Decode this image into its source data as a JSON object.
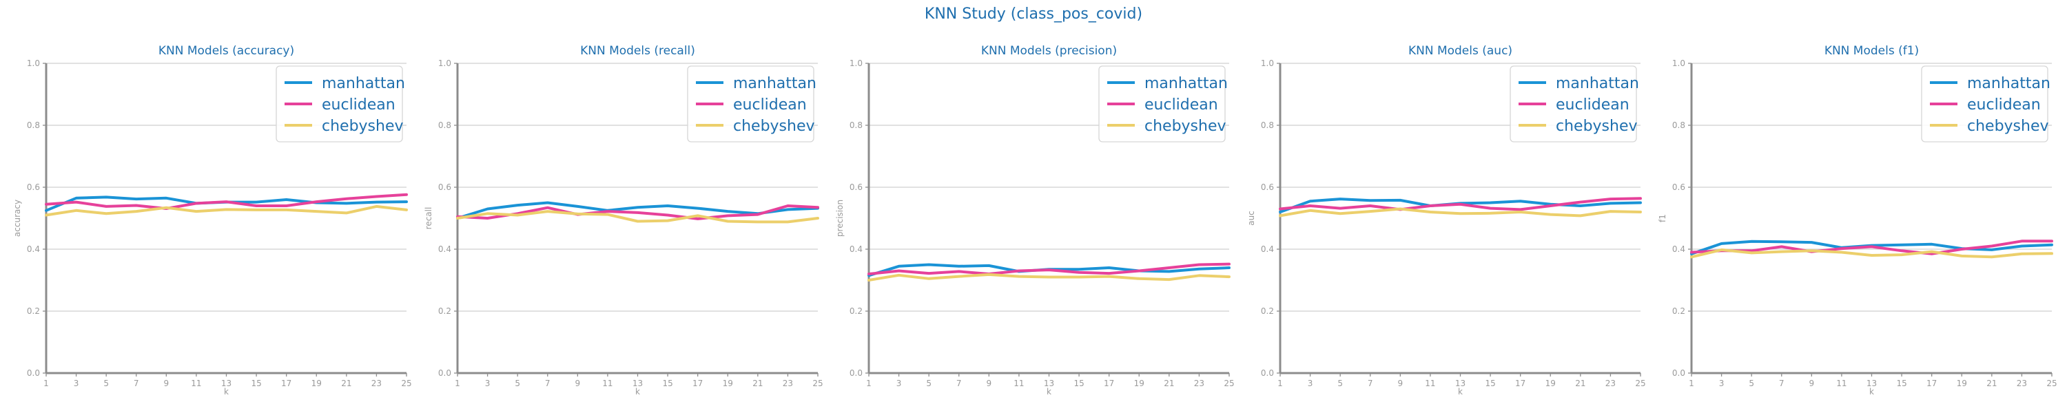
{
  "suptitle": "KNN Study (class_pos_covid)",
  "colors": {
    "manhattan": "#1a93d6",
    "euclidean": "#e6419a",
    "chebyshev": "#eccf6b"
  },
  "chart_data": [
    {
      "type": "line",
      "title": "KNN Models (accuracy)",
      "xlabel": "k",
      "ylabel": "accuracy",
      "ylim": [
        0.0,
        1.0
      ],
      "yticks": [
        "0.0",
        "0.2",
        "0.4",
        "0.6",
        "0.8",
        "1.0"
      ],
      "x": [
        1,
        3,
        5,
        7,
        9,
        11,
        13,
        15,
        17,
        19,
        21,
        23,
        25
      ],
      "grid": "horizontal",
      "legend": "top-right",
      "series": [
        {
          "name": "manhattan",
          "values": [
            0.525,
            0.565,
            0.568,
            0.562,
            0.565,
            0.548,
            0.552,
            0.552,
            0.56,
            0.55,
            0.548,
            0.552,
            0.553
          ]
        },
        {
          "name": "euclidean",
          "values": [
            0.545,
            0.552,
            0.538,
            0.541,
            0.531,
            0.548,
            0.553,
            0.54,
            0.54,
            0.553,
            0.563,
            0.57,
            0.576
          ]
        },
        {
          "name": "chebyshev",
          "values": [
            0.51,
            0.525,
            0.515,
            0.522,
            0.534,
            0.522,
            0.528,
            0.527,
            0.527,
            0.522,
            0.517,
            0.538,
            0.527
          ]
        }
      ]
    },
    {
      "type": "line",
      "title": "KNN Models (recall)",
      "xlabel": "k",
      "ylabel": "recall",
      "ylim": [
        0.0,
        1.0
      ],
      "yticks": [
        "0.0",
        "0.2",
        "0.4",
        "0.6",
        "0.8",
        "1.0"
      ],
      "x": [
        1,
        3,
        5,
        7,
        9,
        11,
        13,
        15,
        17,
        19,
        21,
        23,
        25
      ],
      "grid": "horizontal",
      "legend": "top-right",
      "series": [
        {
          "name": "manhattan",
          "values": [
            0.5,
            0.53,
            0.542,
            0.55,
            0.538,
            0.525,
            0.535,
            0.54,
            0.532,
            0.522,
            0.515,
            0.528,
            0.532
          ]
        },
        {
          "name": "euclidean",
          "values": [
            0.505,
            0.5,
            0.515,
            0.534,
            0.512,
            0.522,
            0.518,
            0.51,
            0.498,
            0.508,
            0.512,
            0.54,
            0.535
          ]
        },
        {
          "name": "chebyshev",
          "values": [
            0.5,
            0.515,
            0.51,
            0.522,
            0.514,
            0.512,
            0.49,
            0.492,
            0.508,
            0.49,
            0.488,
            0.488,
            0.5
          ]
        }
      ]
    },
    {
      "type": "line",
      "title": "KNN Models (precision)",
      "xlabel": "k",
      "ylabel": "precision",
      "ylim": [
        0.0,
        1.0
      ],
      "yticks": [
        "0.0",
        "0.2",
        "0.4",
        "0.6",
        "0.8",
        "1.0"
      ],
      "x": [
        1,
        3,
        5,
        7,
        9,
        11,
        13,
        15,
        17,
        19,
        21,
        23,
        25
      ],
      "grid": "horizontal",
      "legend": "top-right",
      "series": [
        {
          "name": "manhattan",
          "values": [
            0.315,
            0.345,
            0.35,
            0.345,
            0.347,
            0.328,
            0.335,
            0.335,
            0.34,
            0.33,
            0.328,
            0.336,
            0.34
          ]
        },
        {
          "name": "euclidean",
          "values": [
            0.32,
            0.33,
            0.322,
            0.328,
            0.32,
            0.33,
            0.333,
            0.325,
            0.322,
            0.33,
            0.34,
            0.35,
            0.352
          ]
        },
        {
          "name": "chebyshev",
          "values": [
            0.3,
            0.316,
            0.305,
            0.312,
            0.318,
            0.312,
            0.31,
            0.31,
            0.312,
            0.305,
            0.302,
            0.315,
            0.311
          ]
        }
      ]
    },
    {
      "type": "line",
      "title": "KNN Models (auc)",
      "xlabel": "k",
      "ylabel": "auc",
      "ylim": [
        0.0,
        1.0
      ],
      "yticks": [
        "0.0",
        "0.2",
        "0.4",
        "0.6",
        "0.8",
        "1.0"
      ],
      "x": [
        1,
        3,
        5,
        7,
        9,
        11,
        13,
        15,
        17,
        19,
        21,
        23,
        25
      ],
      "grid": "horizontal",
      "legend": "top-right",
      "series": [
        {
          "name": "manhattan",
          "values": [
            0.52,
            0.555,
            0.562,
            0.557,
            0.558,
            0.54,
            0.548,
            0.55,
            0.555,
            0.545,
            0.54,
            0.548,
            0.55
          ]
        },
        {
          "name": "euclidean",
          "values": [
            0.53,
            0.54,
            0.532,
            0.54,
            0.528,
            0.54,
            0.545,
            0.532,
            0.528,
            0.54,
            0.552,
            0.562,
            0.564
          ]
        },
        {
          "name": "chebyshev",
          "values": [
            0.508,
            0.525,
            0.515,
            0.522,
            0.53,
            0.52,
            0.515,
            0.516,
            0.52,
            0.512,
            0.508,
            0.522,
            0.52
          ]
        }
      ]
    },
    {
      "type": "line",
      "title": "KNN Models (f1)",
      "xlabel": "k",
      "ylabel": "f1",
      "ylim": [
        0.0,
        1.0
      ],
      "yticks": [
        "0.0",
        "0.2",
        "0.4",
        "0.6",
        "0.8",
        "1.0"
      ],
      "x": [
        1,
        3,
        5,
        7,
        9,
        11,
        13,
        15,
        17,
        19,
        21,
        23,
        25
      ],
      "grid": "horizontal",
      "legend": "top-right",
      "series": [
        {
          "name": "manhattan",
          "values": [
            0.385,
            0.418,
            0.425,
            0.424,
            0.422,
            0.405,
            0.412,
            0.414,
            0.416,
            0.402,
            0.398,
            0.41,
            0.414
          ]
        },
        {
          "name": "euclidean",
          "values": [
            0.39,
            0.395,
            0.395,
            0.408,
            0.392,
            0.402,
            0.408,
            0.395,
            0.385,
            0.4,
            0.41,
            0.426,
            0.426
          ]
        },
        {
          "name": "chebyshev",
          "values": [
            0.375,
            0.398,
            0.388,
            0.392,
            0.395,
            0.39,
            0.38,
            0.382,
            0.392,
            0.378,
            0.375,
            0.385,
            0.386
          ]
        }
      ]
    }
  ]
}
